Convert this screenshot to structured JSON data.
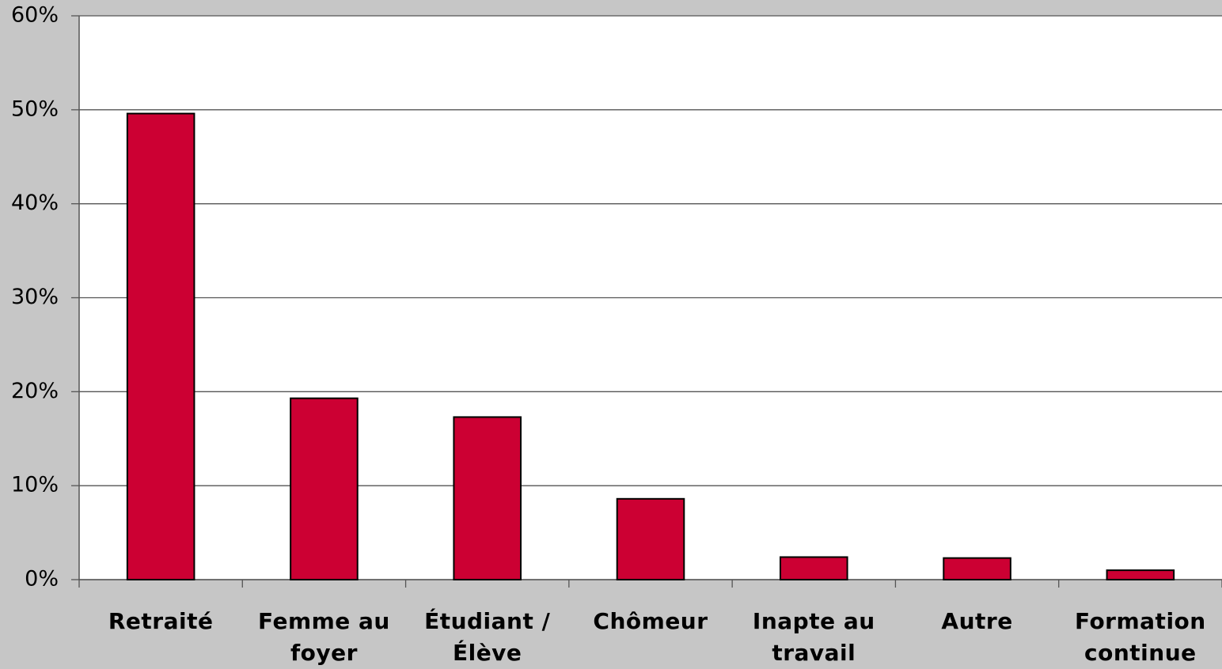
{
  "chart_data": {
    "type": "bar",
    "categories": [
      "Retraité",
      "Femme au foyer",
      "Étudiant / Élève",
      "Chômeur",
      "Inapte au travail",
      "Autre",
      "Formation continue"
    ],
    "values": [
      49.6,
      19.3,
      17.3,
      8.6,
      2.4,
      2.3,
      1.0
    ],
    "color": "#cc0033",
    "ylim": [
      0,
      60
    ],
    "yticks": [
      {
        "value": 0,
        "label": "0%"
      },
      {
        "value": 10,
        "label": "10%"
      },
      {
        "value": 20,
        "label": "20%"
      },
      {
        "value": 30,
        "label": "30%"
      },
      {
        "value": 40,
        "label": "40%"
      },
      {
        "value": 50,
        "label": "50%"
      },
      {
        "value": 60,
        "label": "60%"
      }
    ],
    "grid": true
  }
}
